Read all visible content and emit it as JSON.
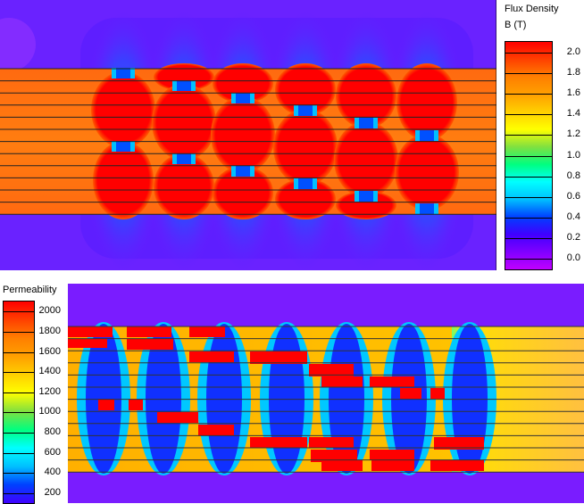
{
  "flux": {
    "title": "Flux Density",
    "subtitle": "B (T)",
    "scale_labels": [
      "2.0",
      "1.8",
      "1.6",
      "1.4",
      "1.2",
      "1.0",
      "0.8",
      "0.6",
      "0.4",
      "0.2",
      "0.0"
    ],
    "colors": [
      "#ff0000",
      "#ff4000",
      "#ff7f00",
      "#ffa000",
      "#ffd000",
      "#ffff00",
      "#80e040",
      "#00ff80",
      "#00ffff",
      "#00c0ff",
      "#0040ff",
      "#4000ff",
      "#8000ff",
      "#c000ff"
    ]
  },
  "permeability": {
    "title": "Permeability",
    "scale_labels": [
      "2000",
      "1800",
      "1600",
      "1400",
      "1200",
      "1000",
      "800",
      "600",
      "400",
      "200"
    ],
    "colors": [
      "#ff0000",
      "#ff4000",
      "#ff7f00",
      "#ffa000",
      "#ffd000",
      "#ffff00",
      "#80e040",
      "#00ff80",
      "#00ffff",
      "#00c0ff",
      "#0040ff",
      "#4000ff"
    ]
  },
  "palette": {
    "background_violet": "#7a1cff",
    "core_orange": "#ff7a10",
    "saturated_red": "#ff0000",
    "gap_blue": "#0050ff"
  }
}
